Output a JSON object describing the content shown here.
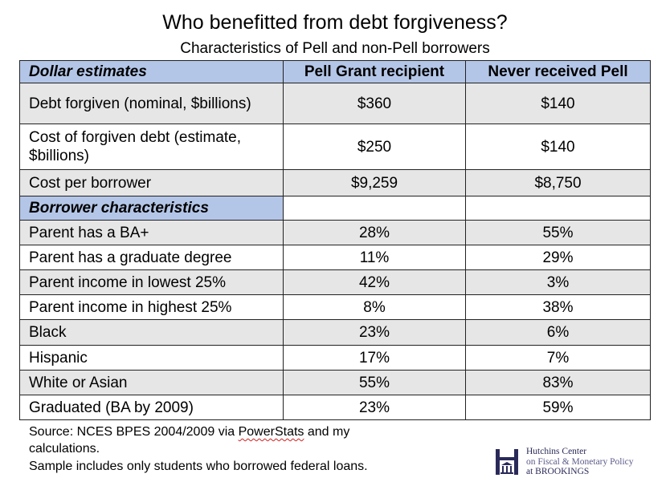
{
  "title": "Who benefitted from debt forgiveness?",
  "subtitle": "Characteristics of Pell and non-Pell borrowers",
  "table": {
    "headers": [
      "Dollar estimates",
      "Pell Grant recipient",
      "Never received Pell"
    ],
    "dollar_rows": [
      {
        "label": "Debt forgiven (nominal, $billions)",
        "pell": "$360",
        "nonpell": "$140"
      },
      {
        "label": "Cost of forgiven debt (estimate, $billions)",
        "pell": "$250",
        "nonpell": "$140"
      },
      {
        "label": "Cost per borrower",
        "pell": "$9,259",
        "nonpell": "$8,750"
      }
    ],
    "section_label": "Borrower characteristics",
    "char_rows": [
      {
        "label": "Parent has a BA+",
        "pell": "28%",
        "nonpell": "55%"
      },
      {
        "label": "Parent has a graduate degree",
        "pell": "11%",
        "nonpell": "29%"
      },
      {
        "label": "Parent income in lowest 25%",
        "pell": "42%",
        "nonpell": "3%"
      },
      {
        "label": "Parent income in highest 25%",
        "pell": "8%",
        "nonpell": "38%"
      },
      {
        "label": "Black",
        "pell": "23%",
        "nonpell": "6%"
      },
      {
        "label": "Hispanic",
        "pell": "17%",
        "nonpell": "7%"
      },
      {
        "label": "White or Asian",
        "pell": "55%",
        "nonpell": "83%"
      },
      {
        "label": "Graduated (BA by 2009)",
        "pell": "23%",
        "nonpell": "59%"
      }
    ]
  },
  "footnotes": {
    "source_prefix": "Source: NCES BPES 2004/2009 via ",
    "source_squiggle": "PowerStats",
    "source_suffix": " and my",
    "source_line2": "calculations.",
    "sample": "Sample includes only students who borrowed federal loans."
  },
  "logo": {
    "line1": "Hutchins Center",
    "line2": "on Fiscal & Monetary Policy",
    "line3": "at BROOKINGS"
  },
  "colors": {
    "header_fill": "#b4c6e7",
    "shaded_row": "#e7e6e6",
    "logo_color": "#2a2a5a"
  }
}
